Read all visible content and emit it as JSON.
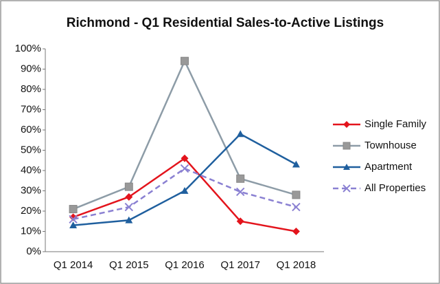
{
  "chart_data": {
    "type": "line",
    "title": "Richmond - Q1 Residential Sales-to-Active Listings",
    "categories": [
      "Q1 2014",
      "Q1 2015",
      "Q1 2016",
      "Q1 2017",
      "Q1 2018"
    ],
    "series": [
      {
        "name": "Single Family",
        "color": "#e3141c",
        "marker": "diamond",
        "dash": false,
        "values": [
          17,
          27,
          46,
          15,
          10
        ]
      },
      {
        "name": "Townhouse",
        "color": "#8d9ca7",
        "marker": "square",
        "dash": false,
        "values": [
          21,
          32,
          94,
          36,
          28
        ]
      },
      {
        "name": "Apartment",
        "color": "#1f5f9e",
        "marker": "triangle",
        "dash": false,
        "values": [
          13,
          15.5,
          30,
          58,
          43
        ]
      },
      {
        "name": "All Properties",
        "color": "#8a80d2",
        "marker": "x",
        "dash": true,
        "values": [
          16,
          22,
          41,
          29.5,
          22
        ]
      }
    ],
    "ylim": [
      0,
      100
    ],
    "yticks": [
      {
        "value": 0,
        "label": "0%"
      },
      {
        "value": 10,
        "label": "10%"
      },
      {
        "value": 20,
        "label": "20%"
      },
      {
        "value": 30,
        "label": "30%"
      },
      {
        "value": 40,
        "label": "40%"
      },
      {
        "value": 50,
        "label": "50%"
      },
      {
        "value": 60,
        "label": "60%"
      },
      {
        "value": 70,
        "label": "70%"
      },
      {
        "value": 80,
        "label": "80%"
      },
      {
        "value": 90,
        "label": "90%"
      },
      {
        "value": 100,
        "label": "100%"
      }
    ],
    "grid": false,
    "legend": "right"
  }
}
